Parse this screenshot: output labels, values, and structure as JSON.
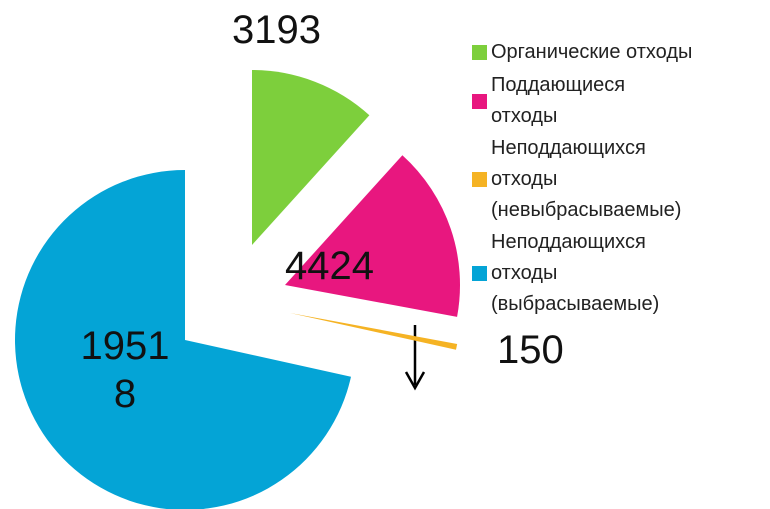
{
  "chart_data": {
    "type": "pie",
    "categories": [
      "Органические отходы",
      "Поддающиеся отходы",
      "Неподдающихся отходы (невыбрасываемые)",
      "Неподдающихся отходы (выбрасываемые)"
    ],
    "values": [
      3193,
      4424,
      150,
      19518
    ],
    "colors": [
      "#7dcf3c",
      "#e8177f",
      "#f5b324",
      "#04a4d6"
    ],
    "legend": "right"
  }
}
